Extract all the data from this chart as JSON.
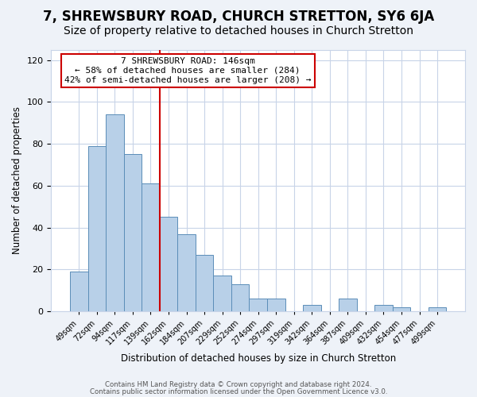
{
  "title": "7, SHREWSBURY ROAD, CHURCH STRETTON, SY6 6JA",
  "subtitle": "Size of property relative to detached houses in Church Stretton",
  "xlabel": "Distribution of detached houses by size in Church Stretton",
  "ylabel": "Number of detached properties",
  "footer_line1": "Contains HM Land Registry data © Crown copyright and database right 2024.",
  "footer_line2": "Contains public sector information licensed under the Open Government Licence v3.0.",
  "bar_labels": [
    "49sqm",
    "72sqm",
    "94sqm",
    "117sqm",
    "139sqm",
    "162sqm",
    "184sqm",
    "207sqm",
    "229sqm",
    "252sqm",
    "274sqm",
    "297sqm",
    "319sqm",
    "342sqm",
    "364sqm",
    "387sqm",
    "409sqm",
    "432sqm",
    "454sqm",
    "477sqm",
    "499sqm"
  ],
  "bar_values": [
    19,
    79,
    94,
    75,
    61,
    45,
    37,
    27,
    17,
    13,
    6,
    6,
    0,
    3,
    0,
    6,
    0,
    3,
    2,
    0,
    2
  ],
  "bar_color": "#b8d0e8",
  "bar_edge_color": "#5b8db8",
  "vline_color": "#cc0000",
  "annotation_title": "7 SHREWSBURY ROAD: 146sqm",
  "annotation_line1": "← 58% of detached houses are smaller (284)",
  "annotation_line2": "42% of semi-detached houses are larger (208) →",
  "annotation_box_edgecolor": "#cc0000",
  "ylim": [
    0,
    125
  ],
  "yticks": [
    0,
    20,
    40,
    60,
    80,
    100,
    120
  ],
  "bg_color": "#eef2f8",
  "plot_bg_color": "#ffffff",
  "grid_color": "#c8d4e8",
  "title_fontsize": 12,
  "subtitle_fontsize": 10
}
